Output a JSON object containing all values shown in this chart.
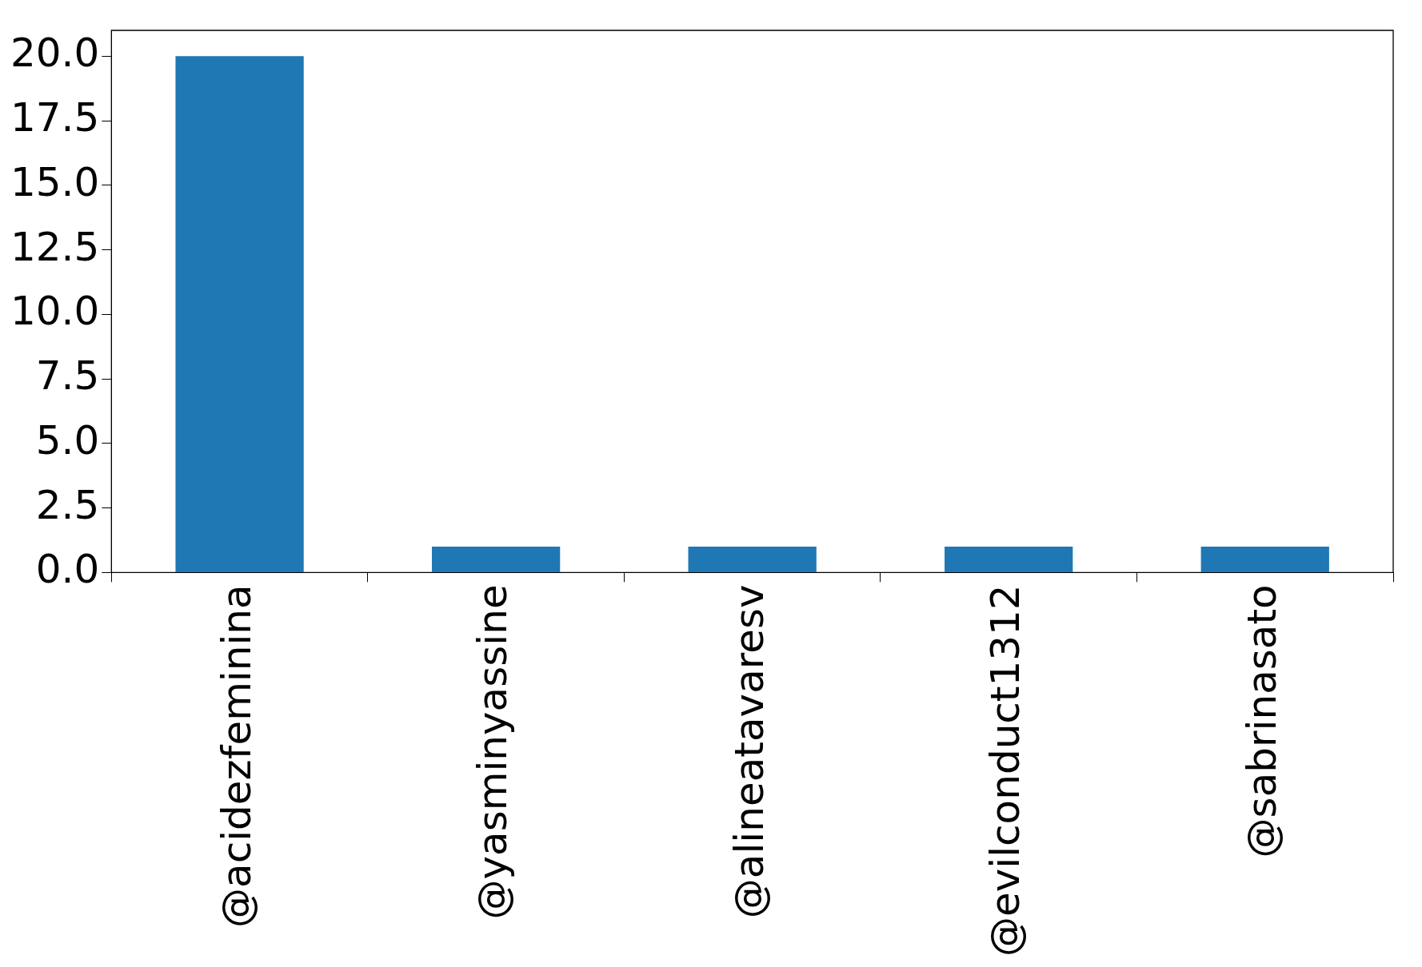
{
  "chart_data": {
    "type": "bar",
    "categories": [
      "@acidezfeminina",
      "@yasminyassine",
      "@alineatavaresv",
      "@evilconduct1312",
      "@sabrinasato"
    ],
    "values": [
      20,
      1,
      1,
      1,
      1
    ],
    "color": "#1f77b4",
    "ylim": [
      0,
      21
    ],
    "yticks": [
      {
        "value": 0,
        "label": "0.0"
      },
      {
        "value": 2.5,
        "label": "2.5"
      },
      {
        "value": 5,
        "label": "5.0"
      },
      {
        "value": 7.5,
        "label": "7.5"
      },
      {
        "value": 10,
        "label": "10.0"
      },
      {
        "value": 12.5,
        "label": "12.5"
      },
      {
        "value": 15,
        "label": "15.0"
      },
      {
        "value": 17.5,
        "label": "17.5"
      },
      {
        "value": 20,
        "label": "20.0"
      }
    ],
    "grid": false,
    "legend": false
  }
}
